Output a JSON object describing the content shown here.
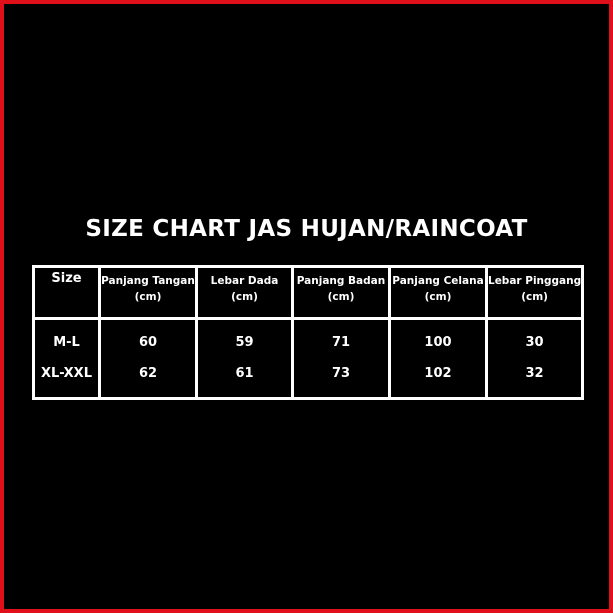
{
  "title": "SIZE CHART JAS HUJAN/RAINCOAT",
  "colors": {
    "background": "#000000",
    "border": "#e0101a",
    "text": "#ffffff"
  },
  "table": {
    "headers": [
      {
        "label": "Size",
        "unit": ""
      },
      {
        "label": "Panjang Tangan",
        "unit": "(cm)"
      },
      {
        "label": "Lebar Dada",
        "unit": "(cm)"
      },
      {
        "label": "Panjang Badan",
        "unit": "(cm)"
      },
      {
        "label": "Panjang Celana",
        "unit": "(cm)"
      },
      {
        "label": "Lebar Pinggang",
        "unit": "(cm)"
      }
    ],
    "rows": [
      [
        "M-L",
        "60",
        "59",
        "71",
        "100",
        "30"
      ],
      [
        "XL-XXL",
        "62",
        "61",
        "73",
        "102",
        "32"
      ]
    ]
  }
}
